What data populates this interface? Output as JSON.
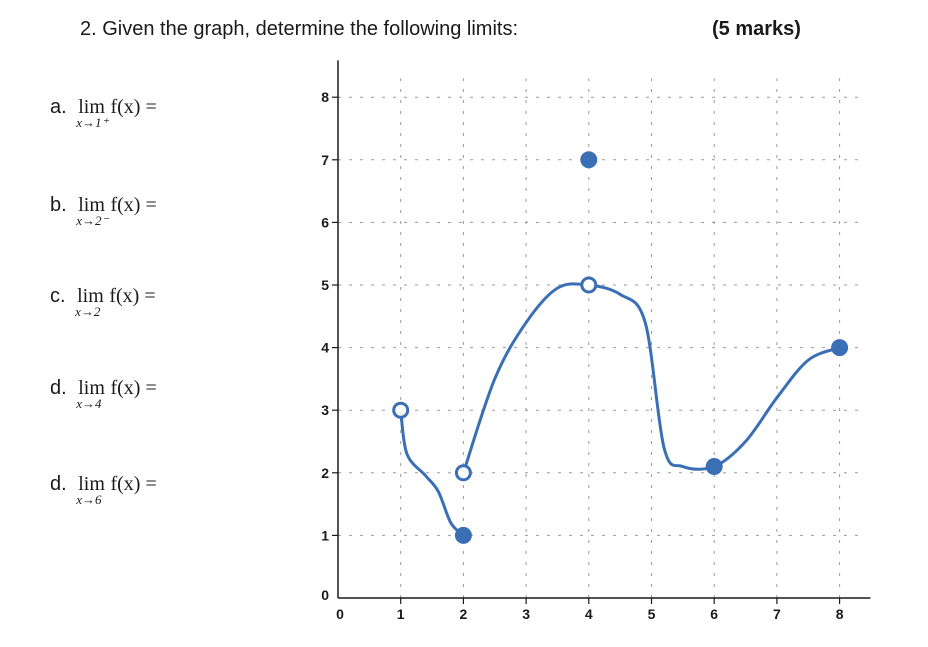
{
  "question": {
    "title": "2. Given the graph, determine the following limits:",
    "marks": "(5 marks)"
  },
  "parts": [
    {
      "label": "a.",
      "lim": "lim",
      "approach": "x→1⁺",
      "expr": "f(x) ="
    },
    {
      "label": "b.",
      "lim": "lim",
      "approach": "x→2⁻",
      "expr": "f(x) ="
    },
    {
      "label": "c.",
      "lim": "lim",
      "approach": "x→2",
      "expr": "f(x) ="
    },
    {
      "label": "d.",
      "lim": "lim",
      "approach": "x→4",
      "expr": "f(x) ="
    },
    {
      "label": "d.",
      "lim": "lim",
      "approach": "x→6",
      "expr": "f(x) ="
    }
  ],
  "chart_data": {
    "type": "line",
    "x_ticks": [
      "0",
      "1",
      "2",
      "3",
      "4",
      "5",
      "6",
      "7",
      "8"
    ],
    "y_ticks": [
      "0",
      "1",
      "2",
      "3",
      "4",
      "5",
      "6",
      "7",
      "8"
    ],
    "xlim": [
      0,
      8.3
    ],
    "ylim": [
      0,
      8.3
    ],
    "grid": true,
    "color": "#3a6fb5",
    "segments": [
      {
        "points": [
          [
            1,
            3
          ],
          [
            1.1,
            2.3
          ],
          [
            1.4,
            1.95
          ],
          [
            1.6,
            1.7
          ],
          [
            1.8,
            1.2
          ],
          [
            2,
            1
          ]
        ]
      },
      {
        "points": [
          [
            2,
            2
          ],
          [
            2.5,
            3.5
          ],
          [
            3,
            4.4
          ],
          [
            3.5,
            4.95
          ],
          [
            4,
            5
          ],
          [
            4.5,
            4.85
          ],
          [
            4.9,
            4.4
          ],
          [
            5.2,
            2.4
          ],
          [
            5.5,
            2.1
          ],
          [
            6,
            2.1
          ],
          [
            6.5,
            2.5
          ],
          [
            7,
            3.2
          ],
          [
            7.5,
            3.8
          ],
          [
            8,
            4
          ]
        ]
      }
    ],
    "points": [
      {
        "x": 1,
        "y": 3,
        "filled": false
      },
      {
        "x": 2,
        "y": 2,
        "filled": false
      },
      {
        "x": 2,
        "y": 1,
        "filled": true
      },
      {
        "x": 4,
        "y": 5,
        "filled": false
      },
      {
        "x": 4,
        "y": 7,
        "filled": true
      },
      {
        "x": 6,
        "y": 2.1,
        "filled": true
      },
      {
        "x": 8,
        "y": 4,
        "filled": true
      }
    ]
  }
}
